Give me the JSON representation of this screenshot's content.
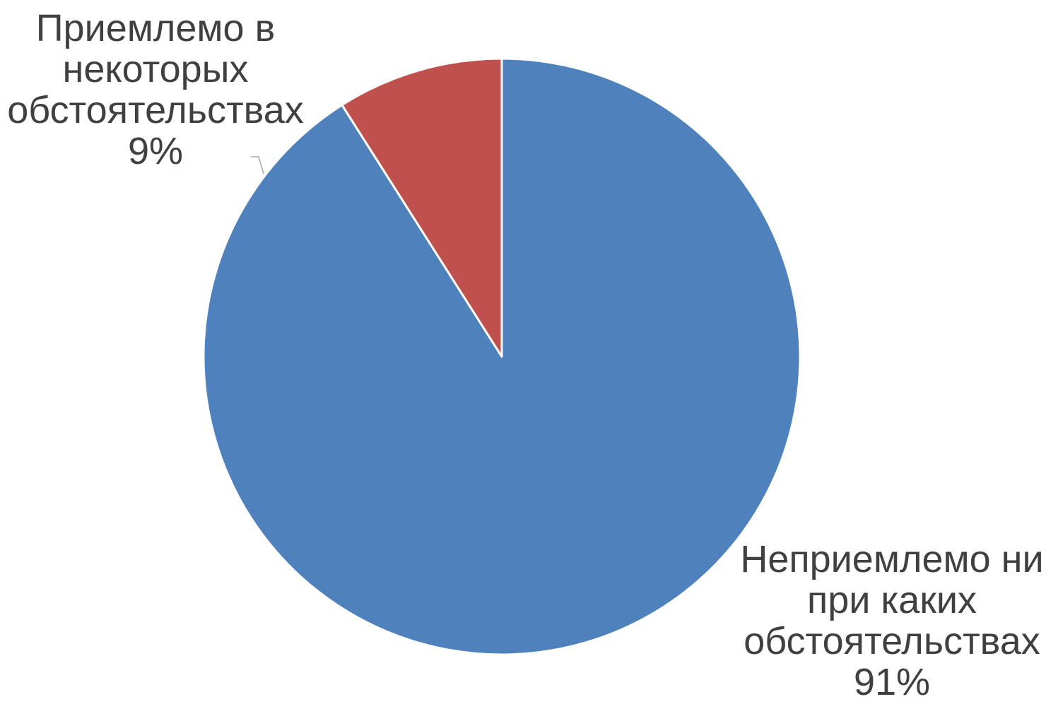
{
  "chart_data": {
    "type": "pie",
    "categories": [
      "Неприемлемо ни при каких обстоятельствах",
      "Приемлемо в некоторых обстоятельствах"
    ],
    "values": [
      91,
      9
    ],
    "colors": [
      "#4f81bd",
      "#c0504d"
    ],
    "start_angle_deg": 0,
    "direction": "clockwise",
    "legend": "none",
    "data_labels": [
      {
        "lines": [
          "Неприемлемо ни",
          "при каких",
          "обстоятельствах",
          "91%"
        ]
      },
      {
        "lines": [
          "Приемлемо в",
          "некоторых",
          "обстоятельствах",
          "9%"
        ]
      }
    ]
  }
}
